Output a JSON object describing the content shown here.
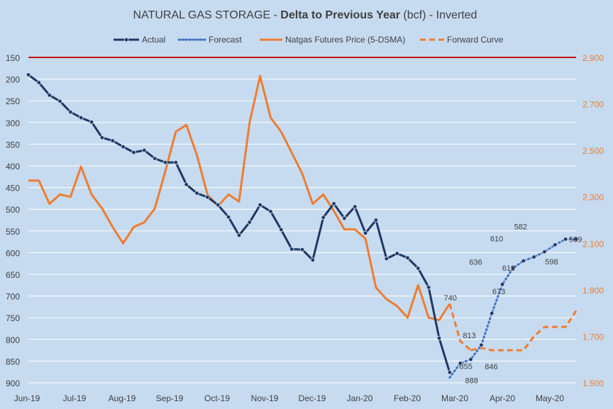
{
  "colors": {
    "background": "#c6dbf0",
    "actual": "#1f3864",
    "forecast": "#4472c4",
    "price": "#ed7d31",
    "forward": "#ed7d31",
    "redline": "#c00000",
    "text": "#404040",
    "grid": "#ffffff"
  },
  "chart_data": {
    "type": "line",
    "title_prefix": "NATURAL GAS STORAGE - ",
    "title_bold": "Delta to Previous Year",
    "title_suffix": " (bcf) - Inverted",
    "legend": {
      "actual": "Actual",
      "forecast": "Forecast",
      "price": "Natgas Futures Price (5-DSMA)",
      "forward": "Forward Curve"
    },
    "x_labels": [
      "Jun-19",
      "Jul-19",
      "Aug-19",
      "Sep-19",
      "Oct-19",
      "Nov-19",
      "Dec-19",
      "Jan-20",
      "Feb-20",
      "Mar-20",
      "Apr-20",
      "May-20"
    ],
    "left_axis": {
      "min": 150,
      "max": 900,
      "inverted": true,
      "ticks": [
        "150",
        "200",
        "250",
        "300",
        "350",
        "400",
        "450",
        "500",
        "550",
        "600",
        "650",
        "700",
        "750",
        "800",
        "850",
        "900"
      ],
      "reference_line": 150
    },
    "right_axis": {
      "min": 1.5,
      "max": 2.9,
      "ticks": [
        "2.900",
        "2.700",
        "2.500",
        "2.300",
        "2.100",
        "1.900",
        "1.700",
        "1.500"
      ]
    },
    "actual": {
      "x": [
        0,
        0.25,
        0.5,
        0.75,
        1,
        1.25,
        1.5,
        1.75,
        2,
        2.25,
        2.5,
        2.75,
        3,
        3.25,
        3.5,
        3.75,
        4,
        4.25,
        4.5,
        4.75,
        5,
        5.25,
        5.5,
        5.75,
        6,
        6.25,
        6.5,
        6.75,
        7,
        7.25,
        7.5,
        7.75,
        8,
        8.25,
        8.5,
        8.75,
        9,
        9.25,
        9.5
      ],
      "y": [
        190,
        208,
        237,
        251,
        276,
        289,
        299,
        335,
        342,
        356,
        369,
        364,
        383,
        392,
        392,
        443,
        463,
        472,
        490,
        518,
        560,
        530,
        490,
        505,
        547,
        592,
        593,
        617,
        519,
        487,
        521,
        494,
        555,
        525,
        614,
        602,
        612,
        636,
        680
      ]
    },
    "actual_tail": {
      "x": [
        9.5,
        9.75,
        10
      ],
      "y": [
        680,
        797,
        876
      ]
    },
    "forecast": {
      "x": [
        10,
        10.25,
        10.5,
        10.75,
        11,
        11.25,
        11.5,
        11.75,
        12,
        12.25,
        12.5,
        12.75,
        13
      ],
      "y": [
        888,
        855,
        846,
        813,
        740,
        673,
        636,
        619,
        610,
        598,
        582,
        569,
        569
      ]
    },
    "forecast_labels": [
      {
        "x": 10.25,
        "y": 888,
        "text": "888"
      },
      {
        "x": 10.25,
        "y": 855,
        "text": "855"
      },
      {
        "x": 10.75,
        "y": 846,
        "text": "846"
      },
      {
        "x": 10.5,
        "y": 813,
        "text": "813"
      },
      {
        "x": 10.25,
        "y": 740,
        "text": "740"
      },
      {
        "x": 11.25,
        "y": 673,
        "text": "673"
      },
      {
        "x": 10.75,
        "y": 636,
        "text": "636"
      },
      {
        "x": 11.5,
        "y": 619,
        "text": "619"
      },
      {
        "x": 11.25,
        "y": 610,
        "text": "610"
      },
      {
        "x": 12.25,
        "y": 598,
        "text": "598"
      },
      {
        "x": 11.75,
        "y": 582,
        "text": "582"
      },
      {
        "x": 12.75,
        "y": 569,
        "text": "569"
      }
    ],
    "price": {
      "x": [
        0,
        0.25,
        0.5,
        0.75,
        1,
        1.25,
        1.5,
        1.75,
        2,
        2.25,
        2.5,
        2.75,
        3,
        3.25,
        3.5,
        3.75,
        4,
        4.25,
        4.5,
        4.75,
        5,
        5.25,
        5.5,
        5.75,
        6,
        6.25,
        6.5,
        6.75,
        7,
        7.25,
        7.5,
        7.75,
        8,
        8.25,
        8.5,
        8.75,
        9,
        9.25,
        9.5,
        9.75,
        10
      ],
      "y": [
        2.37,
        2.37,
        2.27,
        2.31,
        2.3,
        2.43,
        2.31,
        2.25,
        2.17,
        2.1,
        2.17,
        2.19,
        2.25,
        2.41,
        2.58,
        2.61,
        2.48,
        2.31,
        2.26,
        2.31,
        2.28,
        2.62,
        2.82,
        2.64,
        2.58,
        2.49,
        2.4,
        2.27,
        2.31,
        2.24,
        2.16,
        2.16,
        2.12,
        1.91,
        1.86,
        1.83,
        1.78,
        1.92,
        1.78,
        1.77,
        1.84
      ]
    },
    "price_tail": {
      "x": [
        10,
        10.25,
        10.5
      ],
      "y": [
        1.84,
        1.68,
        1.64
      ]
    },
    "forward": {
      "x": [
        10.5,
        10.75,
        11,
        11.25,
        11.5,
        11.75,
        12,
        12.25,
        12.5,
        12.75,
        13
      ],
      "y": [
        1.64,
        1.65,
        1.64,
        1.64,
        1.64,
        1.64,
        1.7,
        1.74,
        1.74,
        1.74,
        1.81
      ]
    }
  }
}
